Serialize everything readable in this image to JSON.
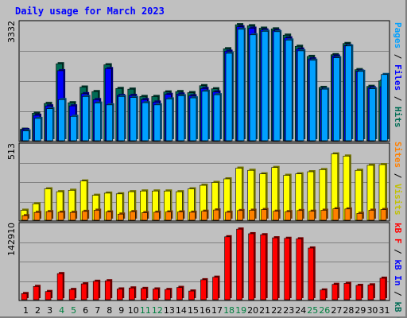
{
  "title": "Daily usage for March 2023",
  "colors": {
    "hits": "#006b54",
    "files": "#0000ff",
    "pages": "#00a0ff",
    "visits": "#ffff00",
    "sites": "#ff8000",
    "kbytes": "#ff0000",
    "weekend_day": "#008040",
    "weekday_day": "#000000"
  },
  "axis_labels": {
    "top_max": "3332",
    "mid_max": "513",
    "bot_max": "142910"
  },
  "side_labels": {
    "top": [
      {
        "text": "Pages",
        "color": "#00a0ff"
      },
      {
        "text": " / ",
        "color": "#000000"
      },
      {
        "text": "Files",
        "color": "#0000ff"
      },
      {
        "text": " / ",
        "color": "#000000"
      },
      {
        "text": "Hits",
        "color": "#006b54"
      }
    ],
    "mid": [
      {
        "text": "Sites",
        "color": "#ff8000"
      },
      {
        "text": " / ",
        "color": "#000000"
      },
      {
        "text": "Visits",
        "color": "#c0c000"
      }
    ],
    "bot": [
      {
        "text": "kB F",
        "color": "#ff0000"
      },
      {
        "text": " / ",
        "color": "#000000"
      },
      {
        "text": "kB In",
        "color": "#0000ff"
      },
      {
        "text": " / ",
        "color": "#000000"
      },
      {
        "text": "kB Out",
        "color": "#006b54"
      }
    ]
  },
  "chart_data": {
    "type": "bar",
    "title": "Daily usage for March 2023",
    "categories": [
      "1",
      "2",
      "3",
      "4",
      "5",
      "6",
      "7",
      "8",
      "9",
      "10",
      "11",
      "12",
      "13",
      "14",
      "15",
      "16",
      "17",
      "18",
      "19",
      "20",
      "21",
      "22",
      "23",
      "24",
      "25",
      "26",
      "27",
      "28",
      "29",
      "30",
      "31"
    ],
    "weekend": [
      4,
      5,
      11,
      12,
      18,
      19,
      25,
      26
    ],
    "panels": {
      "top": {
        "ymax": 3332,
        "series": [
          {
            "name": "Hits",
            "values": [
              330,
              790,
              1070,
              2210,
              1090,
              1540,
              1410,
              2180,
              1500,
              1480,
              1270,
              1270,
              1400,
              1410,
              1380,
              1580,
              1490,
              2640,
              3330,
              3300,
              3230,
              3210,
              3030,
              2710,
              2420,
              1530,
              2470,
              2790,
              2040,
              1560,
              1720
            ]
          },
          {
            "name": "Files",
            "values": [
              320,
              730,
              1000,
              2010,
              1000,
              1350,
              1180,
              2070,
              1300,
              1300,
              1180,
              1110,
              1330,
              1340,
              1290,
              1500,
              1400,
              2570,
              3270,
              3230,
              3180,
              3160,
              2950,
              2630,
              2350,
              1480,
              2430,
              2730,
              2000,
              1520,
              1550
            ]
          },
          {
            "name": "Pages",
            "values": [
              280,
              640,
              920,
              1180,
              700,
              1270,
              1080,
              1030,
              1270,
              1240,
              1090,
              1030,
              1200,
              1290,
              1230,
              1420,
              1320,
              2510,
              3200,
              3040,
              3140,
              3130,
              2890,
              2580,
              2310,
              1480,
              2380,
              2720,
              1990,
              1490,
              1900
            ]
          }
        ]
      },
      "mid": {
        "ymax": 513,
        "series": [
          {
            "name": "Visits",
            "values": [
              70,
              115,
              220,
              200,
              210,
              275,
              175,
              190,
              185,
              200,
              205,
              205,
              205,
              200,
              220,
              245,
              265,
              290,
              365,
              350,
              325,
              370,
              315,
              325,
              340,
              355,
              465,
              450,
              350,
              385,
              390
            ]
          },
          {
            "name": "Sites",
            "values": [
              32,
              55,
              60,
              56,
              55,
              62,
              70,
              58,
              43,
              60,
              53,
              56,
              58,
              58,
              56,
              63,
              72,
              56,
              68,
              70,
              75,
              63,
              60,
              68,
              63,
              70,
              80,
              79,
              48,
              70,
              75
            ]
          }
        ]
      },
      "bot": {
        "ymax": 142910,
        "series": [
          {
            "name": "KBytes",
            "values": [
              12000,
              26000,
              16000,
              51000,
              20000,
              31000,
              36000,
              37000,
              21000,
              23000,
              22000,
              21000,
              20000,
              24000,
              17000,
              39000,
              44000,
              123000,
              138000,
              129000,
              127000,
              121000,
              120000,
              119000,
              101000,
              19000,
              30000,
              32000,
              28000,
              29000,
              42000
            ]
          }
        ]
      }
    }
  }
}
